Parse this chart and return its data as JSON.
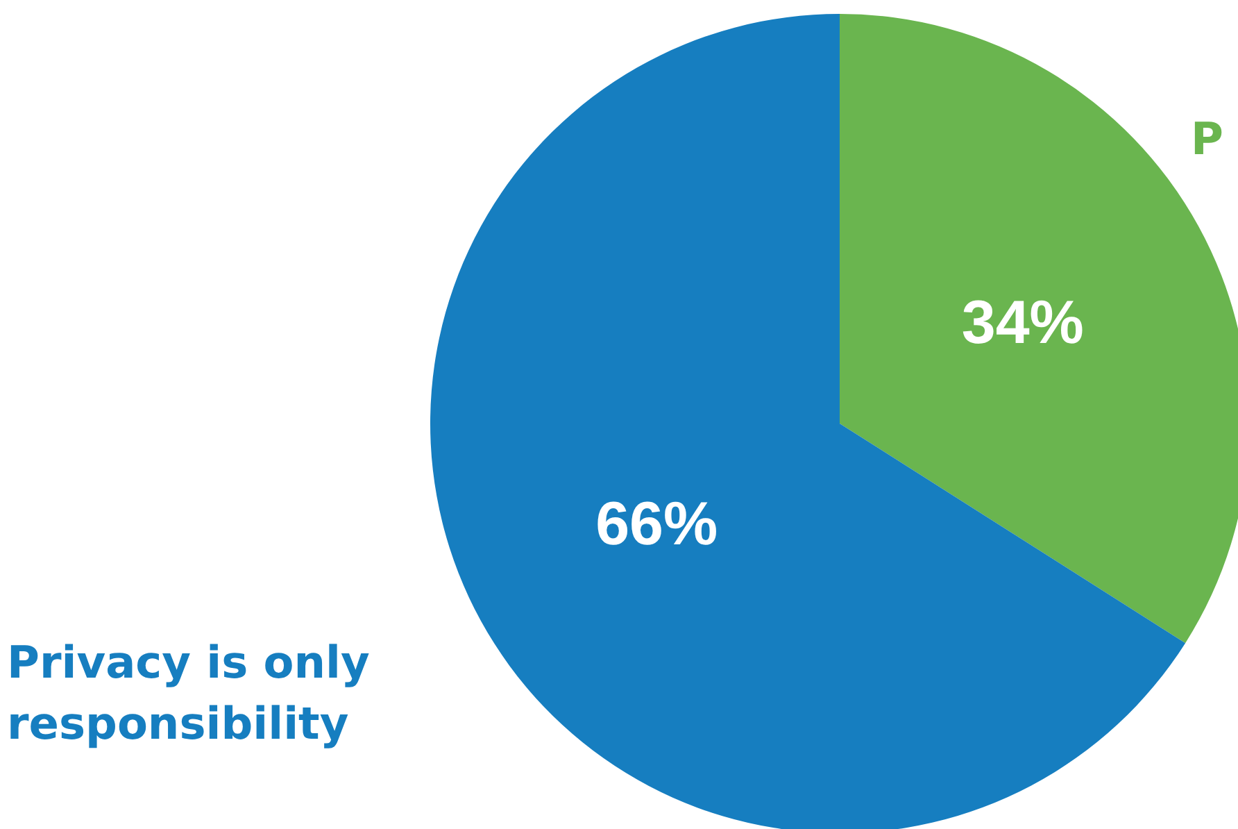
{
  "chart_data": {
    "type": "pie",
    "categories": [
      "P",
      "Privacy is only responsibility"
    ],
    "values": [
      34,
      66
    ],
    "colors": [
      "#6ab54f",
      "#167ec0"
    ],
    "value_labels": [
      "34%",
      "66%"
    ]
  }
}
